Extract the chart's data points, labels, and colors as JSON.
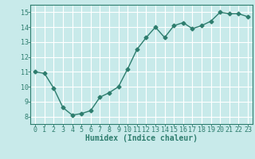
{
  "x": [
    0,
    1,
    2,
    3,
    4,
    5,
    6,
    7,
    8,
    9,
    10,
    11,
    12,
    13,
    14,
    15,
    16,
    17,
    18,
    19,
    20,
    21,
    22,
    23
  ],
  "y": [
    11.0,
    10.9,
    9.9,
    8.6,
    8.1,
    8.2,
    8.4,
    9.3,
    9.6,
    10.0,
    11.2,
    12.5,
    13.3,
    14.0,
    13.3,
    14.1,
    14.3,
    13.9,
    14.1,
    14.4,
    15.0,
    14.9,
    14.9,
    14.7
  ],
  "xlabel": "Humidex (Indice chaleur)",
  "line_color": "#2e7d6e",
  "bg_color": "#c8eaea",
  "grid_color": "#ffffff",
  "ylim": [
    7.5,
    15.5
  ],
  "xlim": [
    -0.5,
    23.5
  ],
  "yticks": [
    8,
    9,
    10,
    11,
    12,
    13,
    14,
    15
  ],
  "xticks": [
    0,
    1,
    2,
    3,
    4,
    5,
    6,
    7,
    8,
    9,
    10,
    11,
    12,
    13,
    14,
    15,
    16,
    17,
    18,
    19,
    20,
    21,
    22,
    23
  ],
  "marker": "D",
  "marker_size": 2.5,
  "line_width": 1.0,
  "xlabel_fontsize": 7,
  "tick_fontsize": 6,
  "xlabel_color": "#2e7d6e",
  "tick_color": "#2e7d6e",
  "spine_color": "#2e7d6e"
}
